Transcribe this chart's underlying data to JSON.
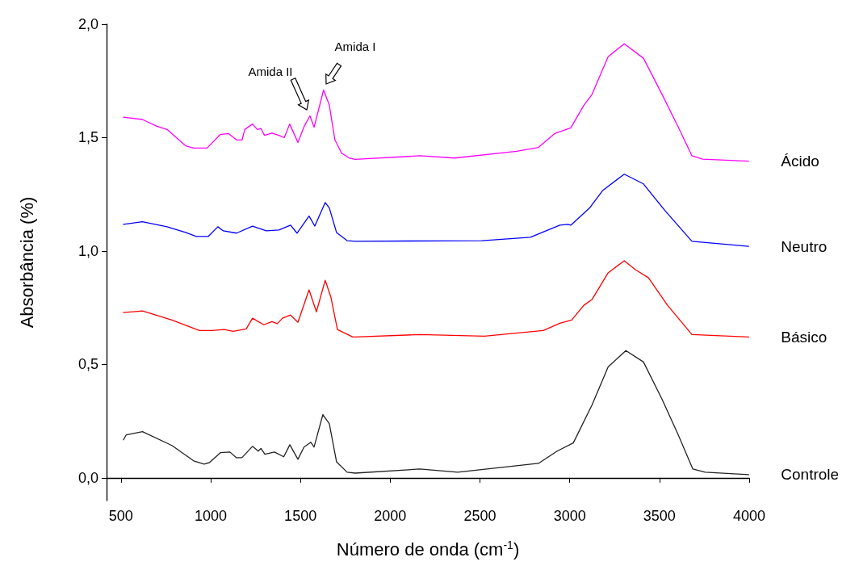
{
  "chart_data": {
    "type": "line",
    "xlabel": "Número de onda (cm$^{-1}$)",
    "ylabel": "Absorbância (%)",
    "xlim": [
      420,
      4000
    ],
    "xticks": [
      500,
      1000,
      1500,
      2000,
      2500,
      3000,
      3500,
      4000
    ],
    "ylim": [
      -0.1,
      2.0
    ],
    "yticks": [
      {
        "value": 0,
        "label": "0,0"
      },
      {
        "value": 0.5,
        "label": "0,5"
      },
      {
        "value": 1,
        "label": "1,0"
      },
      {
        "value": 1.5,
        "label": "1,5"
      },
      {
        "value": 2,
        "label": "2,0"
      }
    ],
    "grid": false,
    "legend": false,
    "marker": "none",
    "line_style": "solid",
    "annotations": [
      "Amida II",
      "Amida I"
    ],
    "series": [
      {
        "name": "Ácido",
        "color": "#ff00ff",
        "x": [
          514,
          620,
          700,
          757,
          860,
          905,
          980,
          1054,
          1100,
          1144,
          1175,
          1190,
          1233,
          1260,
          1280,
          1300,
          1341,
          1380,
          1410,
          1440,
          1486,
          1521,
          1553,
          1576,
          1629,
          1661,
          1692,
          1729,
          1773,
          1805,
          2165,
          2358,
          2705,
          2826,
          2916,
          3006,
          3079,
          3124,
          3214,
          3304,
          3411,
          3515,
          3605,
          3681,
          3740,
          3997
        ],
        "values": [
          1.59,
          1.58,
          1.55,
          1.536,
          1.464,
          1.454,
          1.454,
          1.514,
          1.518,
          1.49,
          1.49,
          1.536,
          1.56,
          1.536,
          1.54,
          1.51,
          1.52,
          1.51,
          1.5,
          1.56,
          1.479,
          1.55,
          1.596,
          1.546,
          1.71,
          1.643,
          1.49,
          1.432,
          1.41,
          1.404,
          1.42,
          1.41,
          1.44,
          1.457,
          1.518,
          1.543,
          1.643,
          1.69,
          1.857,
          1.914,
          1.85,
          1.69,
          1.546,
          1.42,
          1.405,
          1.396
        ]
      },
      {
        "name": "Neutro",
        "color": "#0000ff",
        "x": [
          514,
          620,
          757,
          860,
          920,
          986,
          1040,
          1070,
          1144,
          1233,
          1310,
          1380,
          1445,
          1481,
          1548,
          1580,
          1638,
          1661,
          1701,
          1760,
          1805,
          2511,
          2781,
          2945,
          2990,
          3006,
          3110,
          3185,
          3304,
          3411,
          3530,
          3681,
          3997
        ],
        "values": [
          1.118,
          1.129,
          1.107,
          1.082,
          1.064,
          1.064,
          1.107,
          1.089,
          1.079,
          1.11,
          1.089,
          1.093,
          1.114,
          1.079,
          1.154,
          1.11,
          1.214,
          1.19,
          1.082,
          1.046,
          1.043,
          1.046,
          1.061,
          1.114,
          1.118,
          1.114,
          1.189,
          1.268,
          1.339,
          1.296,
          1.179,
          1.043,
          1.021
        ]
      },
      {
        "name": "Básico",
        "color": "#ff0000",
        "x": [
          514,
          620,
          784,
          937,
          1010,
          1075,
          1126,
          1198,
          1233,
          1296,
          1341,
          1371,
          1400,
          1445,
          1486,
          1548,
          1589,
          1638,
          1670,
          1706,
          1791,
          1805,
          2165,
          2525,
          2853,
          2945,
          3011,
          3079,
          3124,
          3214,
          3304,
          3366,
          3439,
          3545,
          3681,
          3997
        ],
        "values": [
          0.729,
          0.736,
          0.696,
          0.65,
          0.65,
          0.654,
          0.646,
          0.657,
          0.704,
          0.675,
          0.689,
          0.68,
          0.704,
          0.718,
          0.686,
          0.829,
          0.732,
          0.871,
          0.796,
          0.654,
          0.621,
          0.621,
          0.632,
          0.625,
          0.65,
          0.682,
          0.696,
          0.761,
          0.786,
          0.904,
          0.957,
          0.918,
          0.882,
          0.761,
          0.632,
          0.621
        ]
      },
      {
        "name": "Controle",
        "color": "#222222",
        "x": [
          514,
          530,
          620,
          784,
          905,
          964,
          994,
          1054,
          1107,
          1144,
          1174,
          1233,
          1265,
          1280,
          1302,
          1355,
          1407,
          1441,
          1486,
          1520,
          1558,
          1576,
          1625,
          1661,
          1701,
          1760,
          1805,
          2165,
          2376,
          2826,
          2930,
          3020,
          3124,
          3214,
          3313,
          3411,
          3515,
          3605,
          3686,
          3755,
          3997
        ],
        "values": [
          0.168,
          0.19,
          0.204,
          0.143,
          0.075,
          0.061,
          0.068,
          0.111,
          0.114,
          0.089,
          0.089,
          0.139,
          0.118,
          0.13,
          0.104,
          0.114,
          0.093,
          0.146,
          0.082,
          0.136,
          0.157,
          0.136,
          0.279,
          0.239,
          0.071,
          0.025,
          0.021,
          0.039,
          0.025,
          0.064,
          0.118,
          0.154,
          0.321,
          0.489,
          0.561,
          0.511,
          0.346,
          0.189,
          0.039,
          0.025,
          0.014
        ]
      }
    ]
  }
}
